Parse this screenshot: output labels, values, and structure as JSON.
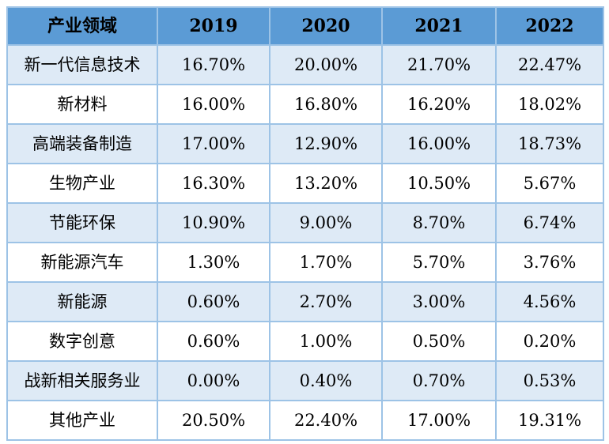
{
  "chart_data": {
    "type": "table",
    "columns": [
      "产业领域",
      "2019",
      "2020",
      "2021",
      "2022"
    ],
    "rows": [
      {
        "label": "新一代信息技术",
        "values": [
          "16.70%",
          "20.00%",
          "21.70%",
          "22.47%"
        ]
      },
      {
        "label": "新材料",
        "values": [
          "16.00%",
          "16.80%",
          "16.20%",
          "18.02%"
        ]
      },
      {
        "label": "高端装备制造",
        "values": [
          "17.00%",
          "12.90%",
          "16.00%",
          "18.73%"
        ]
      },
      {
        "label": "生物产业",
        "values": [
          "16.30%",
          "13.20%",
          "10.50%",
          "5.67%"
        ]
      },
      {
        "label": "节能环保",
        "values": [
          "10.90%",
          "9.00%",
          "8.70%",
          "6.74%"
        ]
      },
      {
        "label": "新能源汽车",
        "values": [
          "1.30%",
          "1.70%",
          "5.70%",
          "3.76%"
        ]
      },
      {
        "label": "新能源",
        "values": [
          "0.60%",
          "2.70%",
          "3.00%",
          "4.56%"
        ]
      },
      {
        "label": "数字创意",
        "values": [
          "0.60%",
          "1.00%",
          "0.50%",
          "0.20%"
        ]
      },
      {
        "label": "战新相关服务业",
        "values": [
          "0.00%",
          "0.40%",
          "0.70%",
          "0.53%"
        ]
      },
      {
        "label": "其他产业",
        "values": [
          "20.50%",
          "22.40%",
          "17.00%",
          "19.31%"
        ]
      }
    ],
    "layout": {
      "legend": "none",
      "grid": "all-cell-borders",
      "zebra_striping": true,
      "first_row_is_header": true
    }
  },
  "colors": {
    "header_bg": "#5b9bd5",
    "row_alt_bg": "#deeaf6",
    "row_bg": "#ffffff",
    "border": "#9dc3e6",
    "text": "#000000"
  }
}
